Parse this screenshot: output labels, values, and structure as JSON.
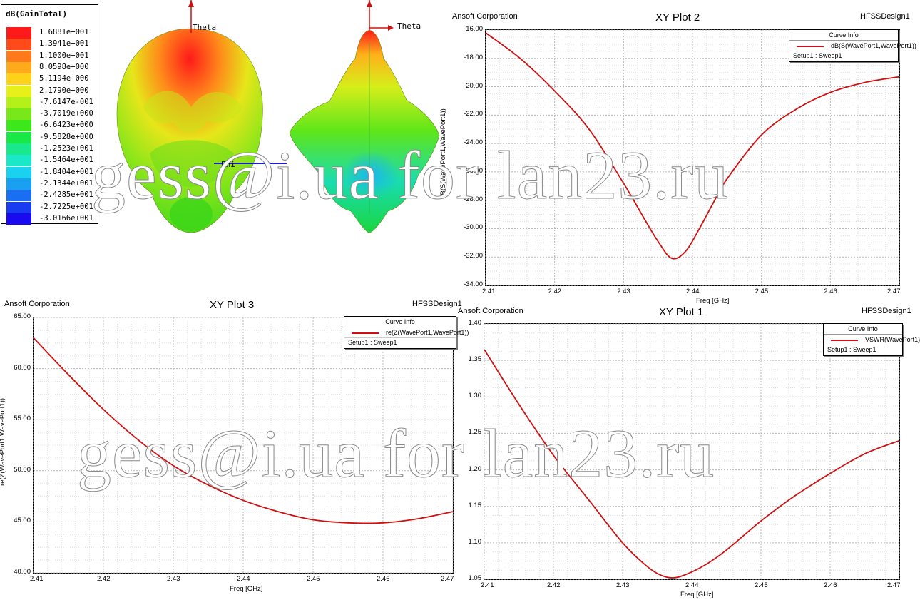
{
  "gain_legend": {
    "title": "dB(GainTotal)",
    "entries": [
      {
        "label": "1.6881e+001",
        "color": "#ff1a1a"
      },
      {
        "label": "1.3941e+001",
        "color": "#ff4a1a"
      },
      {
        "label": "1.1000e+001",
        "color": "#ff7a1a"
      },
      {
        "label": "8.0598e+000",
        "color": "#ffaa1a"
      },
      {
        "label": "5.1194e+000",
        "color": "#ffd21a"
      },
      {
        "label": "2.1790e+000",
        "color": "#e8f01a"
      },
      {
        "label": "-7.6147e-001",
        "color": "#b4f01a"
      },
      {
        "label": "-3.7019e+000",
        "color": "#78e81a"
      },
      {
        "label": "-6.6423e+000",
        "color": "#3ce81a"
      },
      {
        "label": "-9.5828e+000",
        "color": "#1ae846"
      },
      {
        "label": "-1.2523e+001",
        "color": "#1ae88c"
      },
      {
        "label": "-1.5464e+001",
        "color": "#1ae8c8"
      },
      {
        "label": "-1.8404e+001",
        "color": "#1ad2f0"
      },
      {
        "label": "-2.1344e+001",
        "color": "#1aa0f0"
      },
      {
        "label": "-2.4285e+001",
        "color": "#1a6ef0"
      },
      {
        "label": "-2.7225e+001",
        "color": "#1a3cf0"
      },
      {
        "label": "-3.0166e+001",
        "color": "#1a0af0"
      }
    ]
  },
  "pattern": {
    "theta_label_1": "Theta",
    "theta_label_2": "Theta",
    "phi_label": "Phi"
  },
  "watermark": "gess@i.ua for lan23.ru",
  "chart_data": [
    {
      "id": "plot2",
      "type": "line",
      "company": "Ansoft Corporation",
      "title": "XY Plot 2",
      "design": "HFSSDesign1",
      "xlabel": "Freq [GHz]",
      "ylabel": "dB(S(WavePort1,WavePort1))",
      "xlim": [
        2.41,
        2.47
      ],
      "ylim": [
        -34,
        -16
      ],
      "xticks": [
        "2.41",
        "2.42",
        "2.43",
        "2.44",
        "2.45",
        "2.46",
        "2.47"
      ],
      "yticks": [
        "-16.00",
        "-18.00",
        "-20.00",
        "-22.00",
        "-24.00",
        "-26.00",
        "-28.00",
        "-30.00",
        "-32.00",
        "-34.00"
      ],
      "legend_title": "Curve Info",
      "legend_sub": "Setup1 : Sweep1",
      "series": [
        {
          "name": "dB(S(WavePort1,WavePort1))",
          "color": "#d01010",
          "x": [
            2.41,
            2.415,
            2.42,
            2.425,
            2.43,
            2.433,
            2.435,
            2.437,
            2.439,
            2.441,
            2.443,
            2.445,
            2.45,
            2.455,
            2.46,
            2.465,
            2.47
          ],
          "y": [
            -16.2,
            -18.0,
            -20.3,
            -23.0,
            -26.8,
            -29.3,
            -30.9,
            -32.1,
            -31.6,
            -30.0,
            -28.2,
            -26.5,
            -23.4,
            -21.6,
            -20.4,
            -19.7,
            -19.3
          ]
        }
      ]
    },
    {
      "id": "plot3",
      "type": "line",
      "company": "Ansoft Corporation",
      "title": "XY Plot 3",
      "design": "HFSSDesign1",
      "xlabel": "Freq [GHz]",
      "ylabel": "re(Z(WavePort1,WavePort1))",
      "xlim": [
        2.41,
        2.47
      ],
      "ylim": [
        40,
        65
      ],
      "xticks": [
        "2.41",
        "2.42",
        "2.43",
        "2.44",
        "2.45",
        "2.46",
        "2.47"
      ],
      "yticks": [
        "65.00",
        "60.00",
        "55.00",
        "50.00",
        "45.00",
        "40.00"
      ],
      "legend_title": "Curve Info",
      "legend_sub": "Setup1 : Sweep1",
      "series": [
        {
          "name": "re(Z(WavePort1,WavePort1))",
          "color": "#d01010",
          "x": [
            2.41,
            2.415,
            2.42,
            2.425,
            2.43,
            2.435,
            2.44,
            2.445,
            2.45,
            2.455,
            2.46,
            2.465,
            2.47
          ],
          "y": [
            63.0,
            59.4,
            56.0,
            53.0,
            50.5,
            48.6,
            47.1,
            46.0,
            45.2,
            44.9,
            44.9,
            45.3,
            46.0
          ]
        }
      ]
    },
    {
      "id": "plot1",
      "type": "line",
      "company": "Ansoft Corporation",
      "title": "XY Plot 1",
      "design": "HFSSDesign1",
      "xlabel": "Freq [GHz]",
      "ylabel": "",
      "xlim": [
        2.41,
        2.47
      ],
      "ylim": [
        1.05,
        1.4
      ],
      "xticks": [
        "2.41",
        "2.42",
        "2.43",
        "2.44",
        "2.45",
        "2.46",
        "2.47"
      ],
      "yticks": [
        "1.40",
        "1.35",
        "1.30",
        "1.25",
        "1.20",
        "1.15",
        "1.10",
        "1.05"
      ],
      "legend_title": "Curve Info",
      "legend_sub": "Setup1 : Sweep1",
      "series": [
        {
          "name": "VSWR(WavePort1)",
          "color": "#d01010",
          "x": [
            2.41,
            2.415,
            2.42,
            2.425,
            2.43,
            2.433,
            2.435,
            2.437,
            2.439,
            2.442,
            2.445,
            2.45,
            2.455,
            2.46,
            2.465,
            2.47
          ],
          "y": [
            1.365,
            1.29,
            1.22,
            1.16,
            1.1,
            1.072,
            1.058,
            1.052,
            1.056,
            1.07,
            1.09,
            1.13,
            1.165,
            1.195,
            1.222,
            1.24
          ]
        }
      ]
    }
  ]
}
